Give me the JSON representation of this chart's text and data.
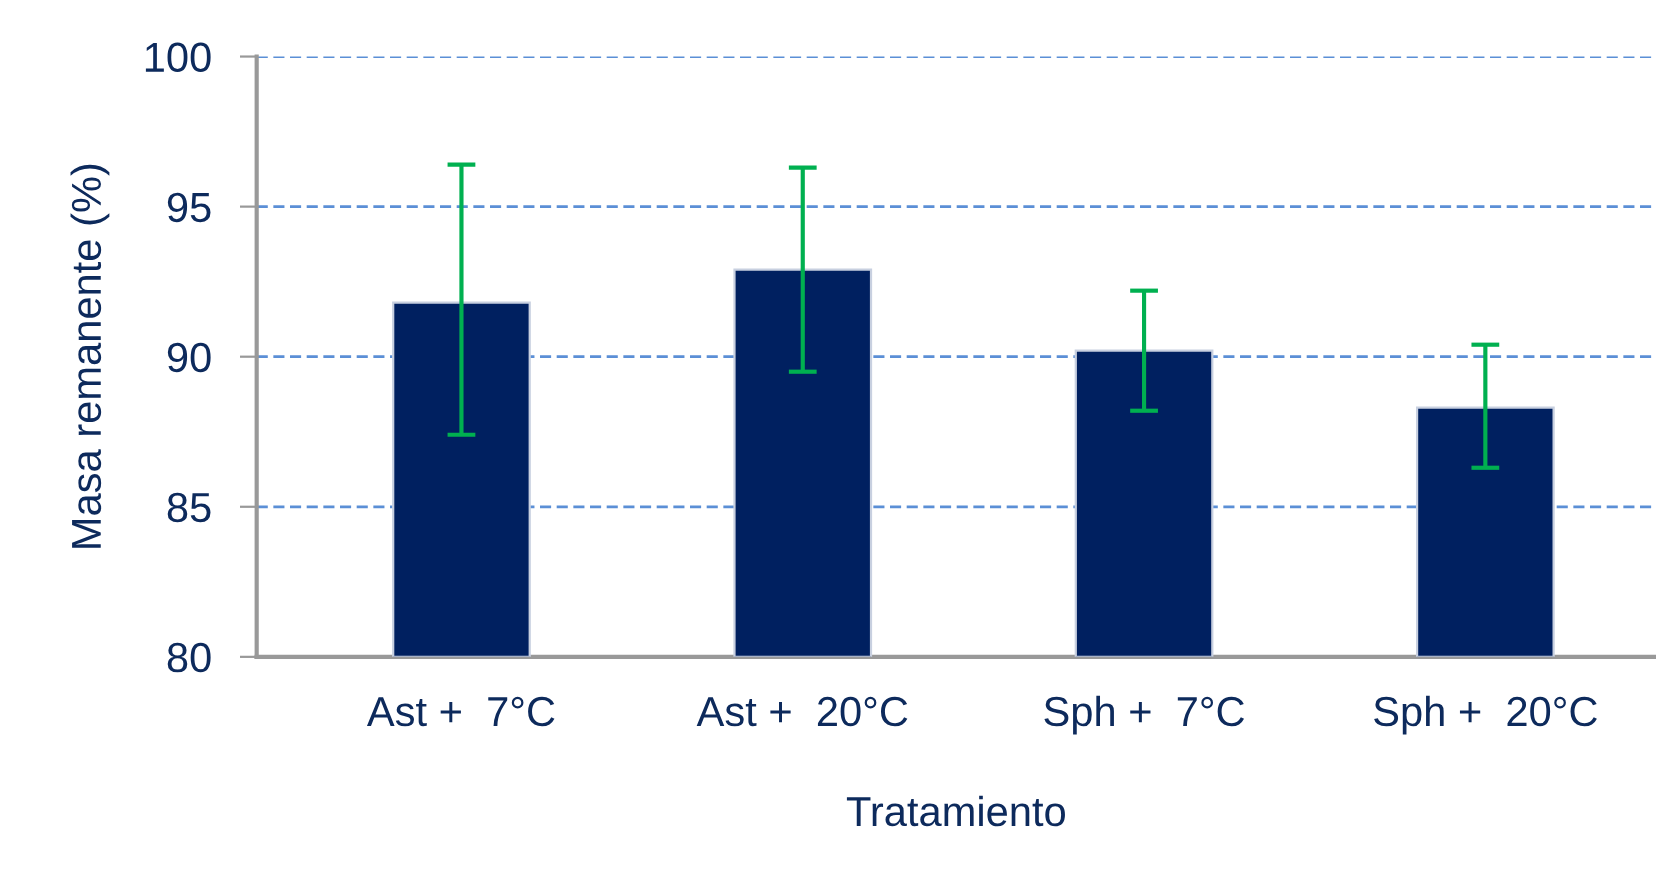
{
  "chart_data": {
    "type": "bar",
    "xlabel": "Tratamiento",
    "ylabel": "Masa remanente (%)",
    "categories": [
      "Ast +  7°C",
      "Ast +  20°C",
      "Sph +  7°C",
      "Sph +  20°C"
    ],
    "values": [
      91.8,
      92.9,
      90.2,
      88.3
    ],
    "errors": [
      [
        87.4,
        96.4
      ],
      [
        89.5,
        96.3
      ],
      [
        88.2,
        92.2
      ],
      [
        86.3,
        90.4
      ]
    ],
    "color": "#002060",
    "ylim": [
      80,
      100
    ],
    "yticks": [
      80,
      85,
      90,
      95,
      100
    ],
    "grid": "y"
  }
}
